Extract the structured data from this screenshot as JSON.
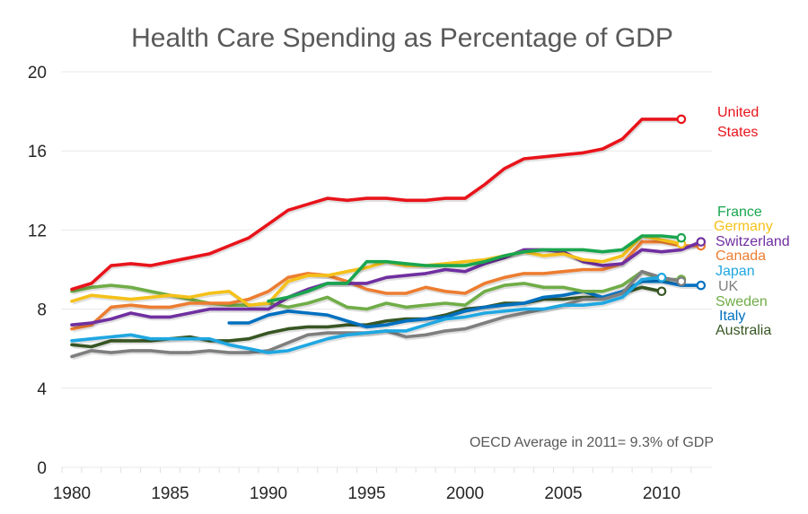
{
  "chart_data": {
    "type": "line",
    "title": "Health Care Spending as Percentage of GDP",
    "xlabel": "",
    "ylabel": "",
    "xlim": [
      1979.6,
      2012.6
    ],
    "ylim": [
      0,
      20
    ],
    "yticks": [
      "0",
      "4",
      "8",
      "12",
      "16",
      "20"
    ],
    "ytick_values": [
      0,
      4,
      8,
      12,
      16,
      20
    ],
    "xticks": [
      "1980",
      "1985",
      "1990",
      "1995",
      "2000",
      "2005",
      "2010"
    ],
    "xtick_values": [
      1980,
      1985,
      1990,
      1995,
      2000,
      2005,
      2010
    ],
    "grid": true,
    "legend": "right (inline labels at line ends)",
    "annotation": "OECD Average in 2011= 9.3% of GDP",
    "series": [
      {
        "name": "United States",
        "label": "United\nStates",
        "color": "#e8141b",
        "start": 1980,
        "values": [
          9.0,
          9.3,
          10.2,
          10.3,
          10.2,
          10.4,
          10.6,
          10.8,
          11.2,
          11.6,
          12.3,
          13.0,
          13.3,
          13.6,
          13.5,
          13.6,
          13.6,
          13.5,
          13.5,
          13.6,
          13.6,
          14.3,
          15.1,
          15.6,
          15.7,
          15.8,
          15.9,
          16.1,
          16.6,
          17.6,
          17.6,
          17.6
        ]
      },
      {
        "name": "France",
        "label": "France",
        "color": "#1aa64f",
        "start": 1990,
        "values": [
          8.4,
          8.6,
          8.9,
          9.3,
          9.3,
          10.4,
          10.4,
          10.3,
          10.2,
          10.2,
          10.2,
          10.4,
          10.7,
          10.9,
          11.0,
          11.0,
          11.0,
          10.9,
          11.0,
          11.7,
          11.7,
          11.6
        ]
      },
      {
        "name": "Germany",
        "label": "Germany",
        "color": "#f5c11a",
        "start": 1980,
        "values": [
          8.4,
          8.7,
          8.6,
          8.5,
          8.6,
          8.7,
          8.6,
          8.8,
          8.9,
          8.2,
          8.3,
          9.4,
          9.7,
          9.7,
          9.9,
          10.1,
          10.4,
          10.2,
          10.2,
          10.3,
          10.4,
          10.5,
          10.7,
          10.9,
          10.7,
          10.8,
          10.5,
          10.4,
          10.7,
          11.7,
          11.5,
          11.3
        ]
      },
      {
        "name": "Switzerland",
        "label": "Switzerland",
        "color": "#7030a0",
        "start": 1980,
        "values": [
          7.2,
          7.3,
          7.5,
          7.8,
          7.6,
          7.6,
          7.8,
          8.0,
          8.0,
          8.0,
          8.0,
          8.6,
          9.0,
          9.3,
          9.3,
          9.3,
          9.6,
          9.7,
          9.8,
          10.0,
          9.9,
          10.3,
          10.6,
          11.0,
          11.0,
          10.9,
          10.4,
          10.2,
          10.3,
          11.0,
          10.9,
          11.0,
          11.4
        ]
      },
      {
        "name": "Canada",
        "label": "Canada",
        "color": "#ed7d31",
        "start": 1980,
        "values": [
          7.0,
          7.2,
          8.1,
          8.2,
          8.1,
          8.1,
          8.3,
          8.3,
          8.3,
          8.5,
          8.9,
          9.6,
          9.8,
          9.7,
          9.4,
          9.0,
          8.8,
          8.8,
          9.1,
          8.9,
          8.8,
          9.3,
          9.6,
          9.8,
          9.8,
          9.9,
          10.0,
          10.0,
          10.3,
          11.4,
          11.4,
          11.2,
          11.2
        ]
      },
      {
        "name": "Japan",
        "label": "Japan",
        "color": "#1fa7e1",
        "start": 1980,
        "values": [
          6.4,
          6.5,
          6.6,
          6.7,
          6.5,
          6.5,
          6.5,
          6.5,
          6.2,
          6.0,
          5.8,
          5.9,
          6.2,
          6.5,
          6.7,
          6.8,
          6.9,
          6.9,
          7.2,
          7.5,
          7.6,
          7.8,
          7.9,
          8.0,
          8.0,
          8.2,
          8.2,
          8.3,
          8.6,
          9.5,
          9.6
        ]
      },
      {
        "name": "UK",
        "label": "UK",
        "color": "#7f7f7f",
        "start": 1980,
        "values": [
          5.6,
          5.9,
          5.8,
          5.9,
          5.9,
          5.8,
          5.8,
          5.9,
          5.8,
          5.8,
          5.9,
          6.3,
          6.7,
          6.8,
          6.8,
          6.8,
          6.9,
          6.6,
          6.7,
          6.9,
          7.0,
          7.3,
          7.6,
          7.8,
          8.0,
          8.2,
          8.5,
          8.5,
          8.8,
          9.9,
          9.6,
          9.4
        ]
      },
      {
        "name": "Sweden",
        "label": "Sweden",
        "color": "#70ad47",
        "start": 1980,
        "values": [
          8.9,
          9.1,
          9.2,
          9.1,
          8.9,
          8.7,
          8.5,
          8.3,
          8.2,
          8.2,
          8.3,
          8.1,
          8.3,
          8.6,
          8.1,
          8.0,
          8.3,
          8.1,
          8.2,
          8.3,
          8.2,
          8.9,
          9.2,
          9.3,
          9.1,
          9.1,
          8.9,
          8.9,
          9.2,
          9.9,
          9.5,
          9.5
        ]
      },
      {
        "name": "Italy",
        "label": "Italy",
        "color": "#0070c0",
        "start": 1988,
        "values": [
          7.3,
          7.3,
          7.7,
          7.9,
          7.8,
          7.7,
          7.4,
          7.1,
          7.2,
          7.4,
          7.5,
          7.6,
          7.9,
          8.1,
          8.2,
          8.3,
          8.6,
          8.7,
          8.9,
          8.6,
          8.9,
          9.4,
          9.4,
          9.2,
          9.2
        ]
      },
      {
        "name": "Australia",
        "label": "Australia",
        "color": "#375623",
        "start": 1980,
        "values": [
          6.2,
          6.1,
          6.4,
          6.4,
          6.4,
          6.5,
          6.6,
          6.4,
          6.4,
          6.5,
          6.8,
          7.0,
          7.1,
          7.1,
          7.2,
          7.2,
          7.4,
          7.5,
          7.5,
          7.7,
          8.0,
          8.1,
          8.3,
          8.3,
          8.5,
          8.5,
          8.6,
          8.6,
          8.8,
          9.1,
          8.9
        ]
      }
    ]
  }
}
